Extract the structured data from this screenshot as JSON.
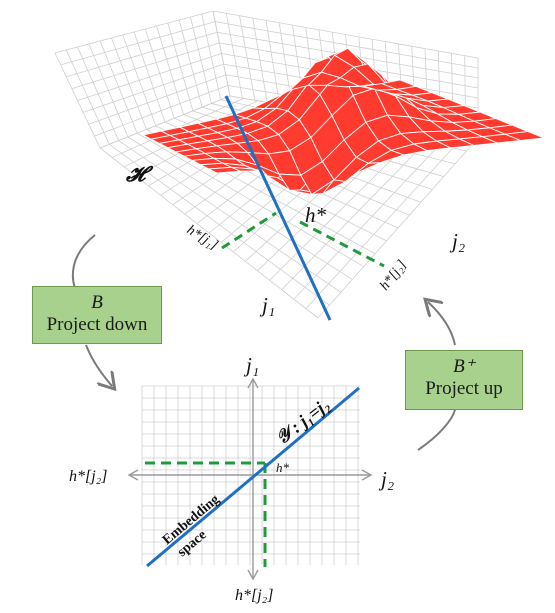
{
  "top_plot": {
    "surface_label": "𝓗",
    "h_star": "h*",
    "axis_j1": "j₁",
    "axis_j2": "j₂",
    "proj_j1": "h*[j₁]",
    "proj_j2": "h*[j₂]"
  },
  "left_box": {
    "line1": "B",
    "line2": "Project down"
  },
  "right_box": {
    "line1": "B⁺",
    "line2": "Project up"
  },
  "bottom_plot": {
    "axis_j1": "j₁",
    "axis_j2": "j₂",
    "left_label": "h*[j₂]",
    "bottom_label": "h*[j₂]",
    "point_label": "h*",
    "line_label": "𝒴 : j₁=j₂",
    "embedding_label_1": "Embedding",
    "embedding_label_2": "space"
  },
  "colors": {
    "surface": "#ff3b30",
    "line_blue": "#1f6fc4",
    "dash_green": "#1e9b3a",
    "grid": "#c8c8c8",
    "box_green": "#a9d18e"
  }
}
